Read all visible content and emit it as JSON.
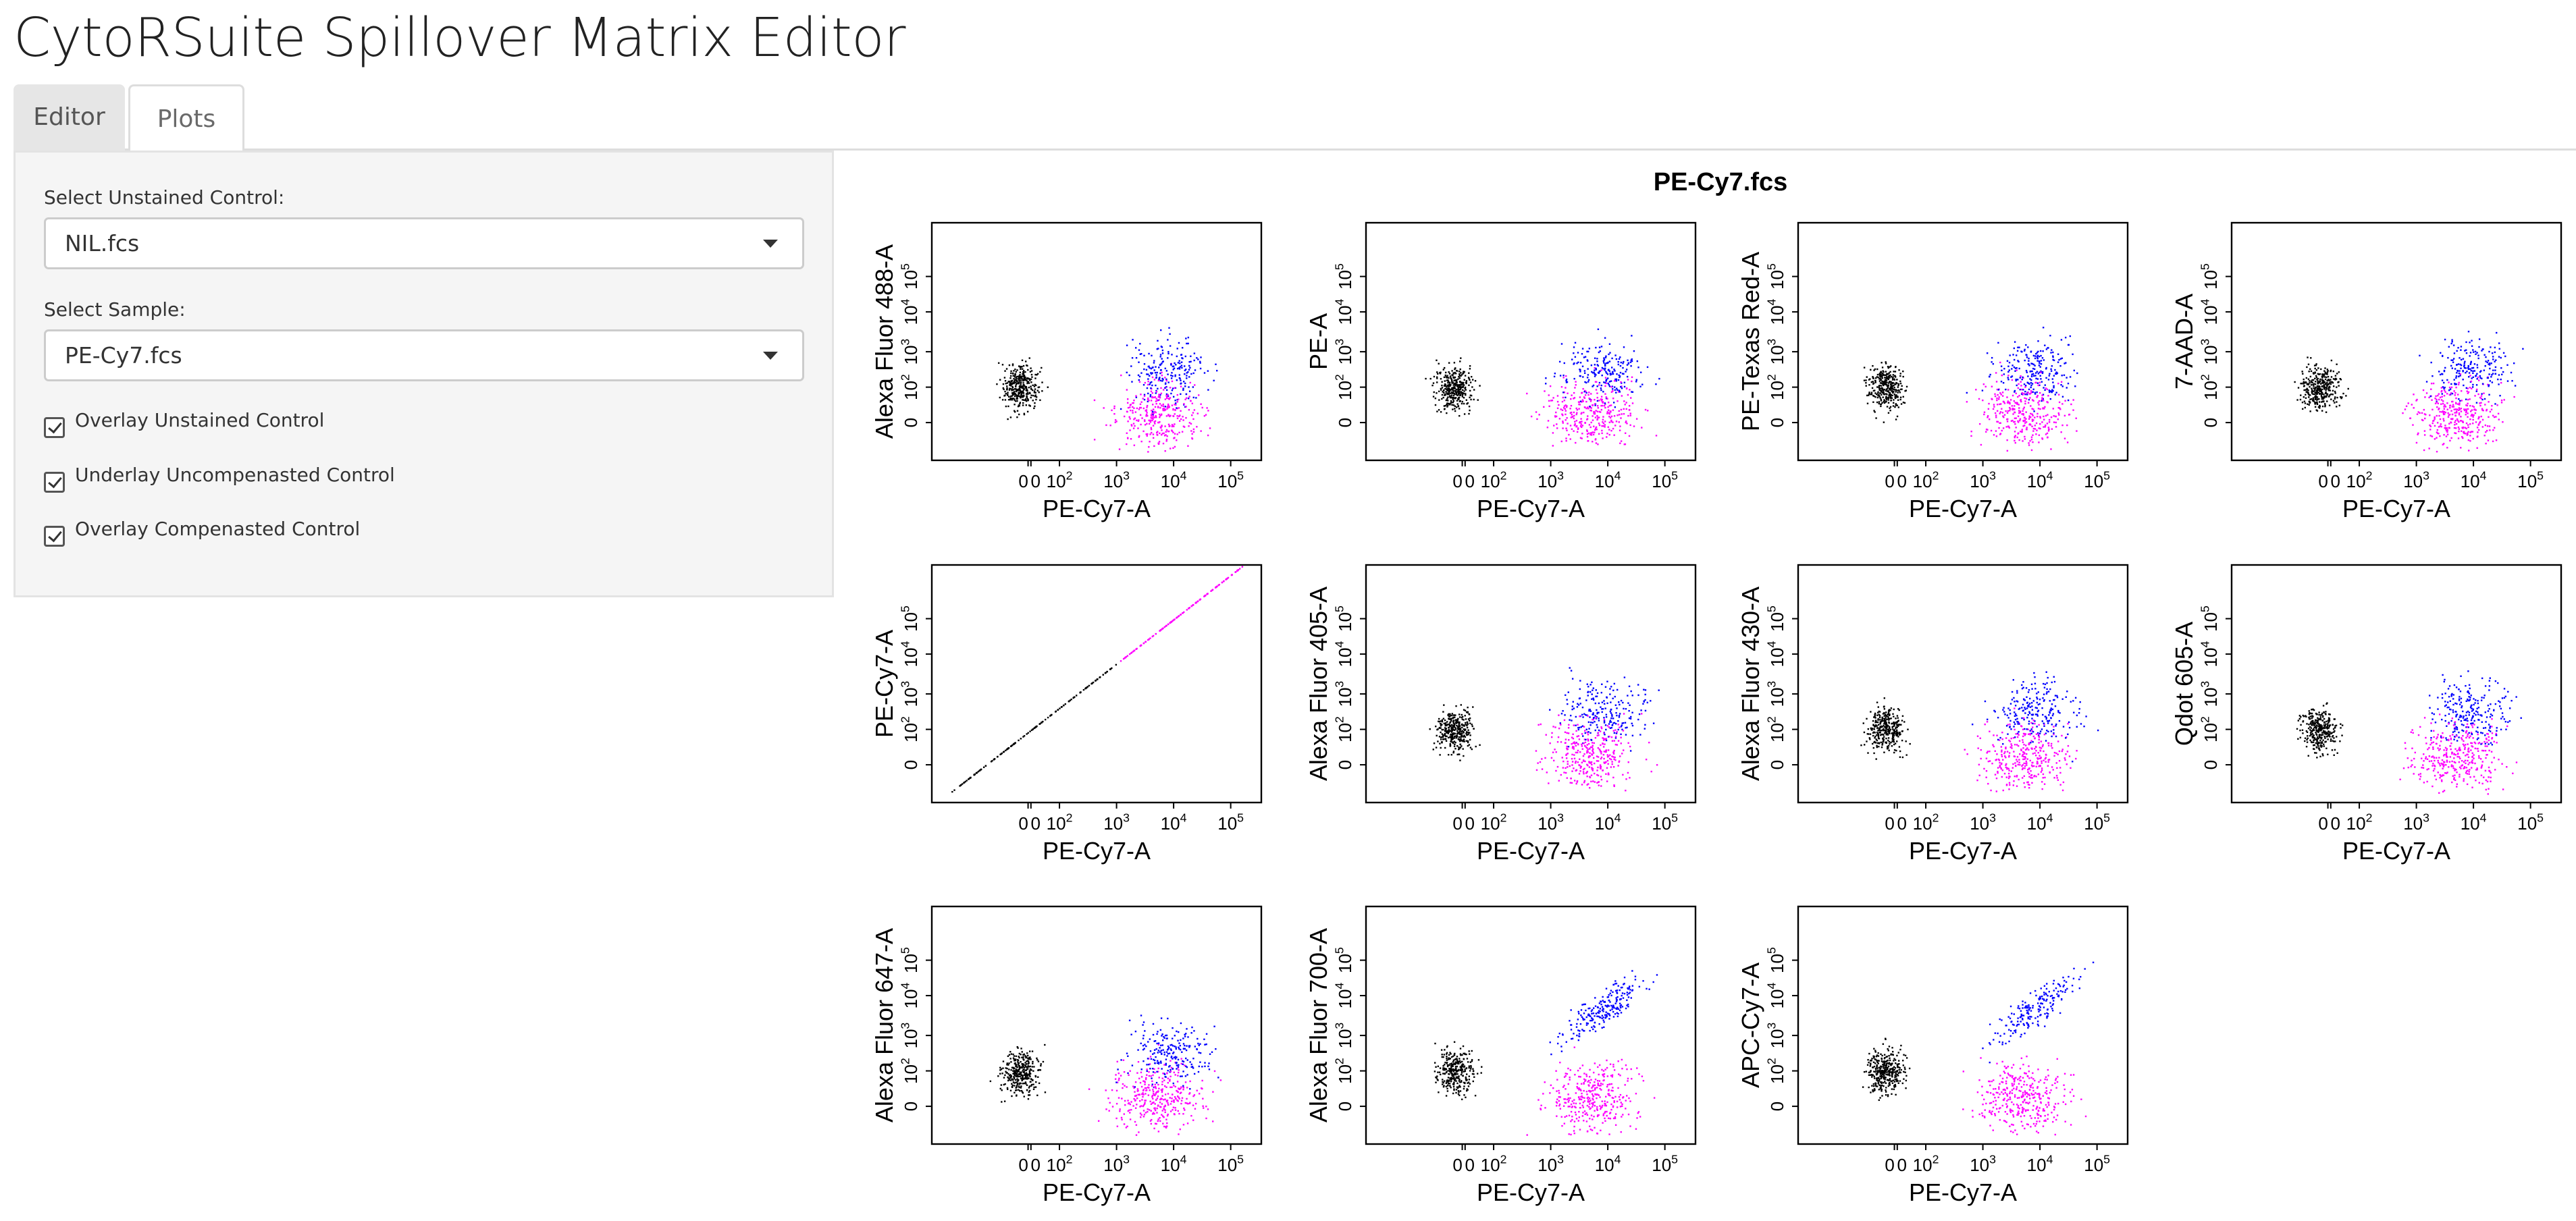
{
  "app": {
    "title": "CytoRSuite Spillover Matrix Editor"
  },
  "tabs": [
    {
      "label": "Editor",
      "active": false
    },
    {
      "label": "Plots",
      "active": true
    }
  ],
  "sidebar": {
    "unstained_label": "Select Unstained Control:",
    "unstained_value": "NIL.fcs",
    "sample_label": "Select Sample:",
    "sample_value": "PE-Cy7.fcs",
    "checkboxes": [
      {
        "label": "Overlay Unstained Control",
        "checked": true
      },
      {
        "label": "Underlay Uncompenasted Control",
        "checked": true
      },
      {
        "label": "Overlay Compenasted Control",
        "checked": true
      }
    ]
  },
  "figure": {
    "title": "PE-Cy7.fcs",
    "x_axis_label": "PE-Cy7-A",
    "x_tick_labels": [
      "0",
      "0",
      "10^2",
      "10^3",
      "10^4",
      "10^5"
    ],
    "y_tick_labels": [
      "0",
      "10^2",
      "10^3",
      "10^4",
      "10^5"
    ],
    "colors": {
      "unstained": "#000000",
      "uncompensated": "#0000ff",
      "compensated": "#ff00ff"
    }
  },
  "chart_data": [
    {
      "type": "scatter",
      "title": "",
      "xlabel": "PE-Cy7-A",
      "ylabel": "Alexa Fluor 488-A",
      "pattern": "cluster",
      "upper_extent": 3.5
    },
    {
      "type": "scatter",
      "title": "",
      "xlabel": "PE-Cy7-A",
      "ylabel": "PE-A",
      "pattern": "cluster",
      "upper_extent": 3.8
    },
    {
      "type": "scatter",
      "title": "",
      "xlabel": "PE-Cy7-A",
      "ylabel": "PE-Texas Red-A",
      "pattern": "cluster",
      "upper_extent": 3.7
    },
    {
      "type": "scatter",
      "title": "",
      "xlabel": "PE-Cy7-A",
      "ylabel": "7-AAD-A",
      "pattern": "cluster",
      "upper_extent": 3.6
    },
    {
      "type": "scatter",
      "title": "",
      "xlabel": "PE-Cy7-A",
      "ylabel": "PE-Cy7-A",
      "pattern": "diagonal",
      "upper_extent": 5.0
    },
    {
      "type": "scatter",
      "title": "",
      "xlabel": "PE-Cy7-A",
      "ylabel": "Alexa Fluor 405-A",
      "pattern": "cluster",
      "upper_extent": 3.5
    },
    {
      "type": "scatter",
      "title": "",
      "xlabel": "PE-Cy7-A",
      "ylabel": "Alexa Fluor 430-A",
      "pattern": "cluster",
      "upper_extent": 3.5
    },
    {
      "type": "scatter",
      "title": "",
      "xlabel": "PE-Cy7-A",
      "ylabel": "Qdot 605-A",
      "pattern": "cluster",
      "upper_extent": 4.2
    },
    {
      "type": "scatter",
      "title": "",
      "xlabel": "PE-Cy7-A",
      "ylabel": "Alexa Fluor 647-A",
      "pattern": "cluster",
      "upper_extent": 3.3
    },
    {
      "type": "scatter",
      "title": "",
      "xlabel": "PE-Cy7-A",
      "ylabel": "Alexa Fluor 700-A",
      "pattern": "rising",
      "upper_extent": 4.0
    },
    {
      "type": "scatter",
      "title": "",
      "xlabel": "PE-Cy7-A",
      "ylabel": "APC-Cy7-A",
      "pattern": "rising",
      "upper_extent": 4.5
    }
  ]
}
